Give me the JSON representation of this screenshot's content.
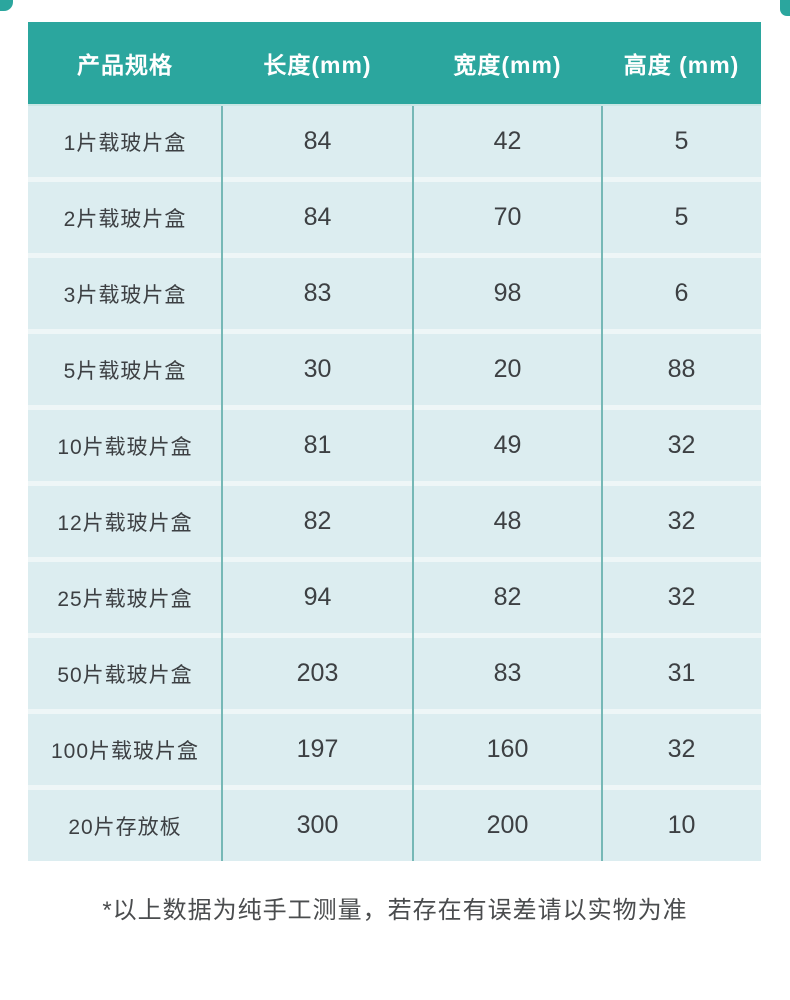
{
  "table": {
    "headers": [
      {
        "label": "产品规格"
      },
      {
        "label": "长度(mm)"
      },
      {
        "label": "宽度(mm)"
      },
      {
        "label": "高度 (mm)"
      }
    ],
    "rows": [
      {
        "spec": "1片载玻片盒",
        "length": "84",
        "width": "42",
        "height": "5"
      },
      {
        "spec": "2片载玻片盒",
        "length": "84",
        "width": "70",
        "height": "5"
      },
      {
        "spec": "3片载玻片盒",
        "length": "83",
        "width": "98",
        "height": "6"
      },
      {
        "spec": "5片载玻片盒",
        "length": "30",
        "width": "20",
        "height": "88"
      },
      {
        "spec": "10片载玻片盒",
        "length": "81",
        "width": "49",
        "height": "32"
      },
      {
        "spec": "12片载玻片盒",
        "length": "82",
        "width": "48",
        "height": "32"
      },
      {
        "spec": "25片载玻片盒",
        "length": "94",
        "width": "82",
        "height": "32"
      },
      {
        "spec": "50片载玻片盒",
        "length": "203",
        "width": "83",
        "height": "31"
      },
      {
        "spec": "100片载玻片盒",
        "length": "197",
        "width": "160",
        "height": "32"
      },
      {
        "spec": "20片存放板",
        "length": "300",
        "width": "200",
        "height": "10"
      }
    ]
  },
  "footnote": {
    "text": "*以上数据为纯手工测量，若存在有误差请以实物为准"
  },
  "colors": {
    "header_bg": "#2ba69e",
    "header_text": "#ffffff",
    "row_bg": "#dcedf0",
    "row_gap": "#eef6f7",
    "column_divider": "#76b8b6",
    "cell_text": "#3d4043",
    "footnote_text": "#4a4c4e"
  }
}
